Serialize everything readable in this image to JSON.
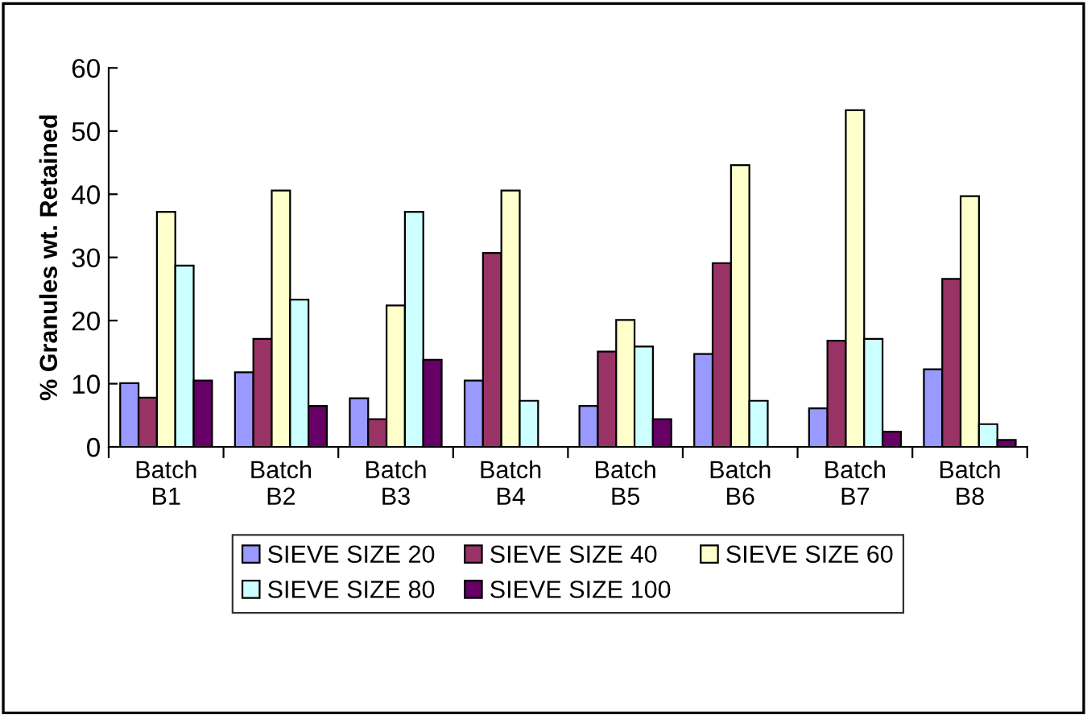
{
  "chart_data": {
    "type": "bar",
    "ylabel": "% Granules wt. Retained",
    "categories": [
      "Batch\nB1",
      "Batch\nB2",
      "Batch\nB3",
      "Batch\nB4",
      "Batch\nB5",
      "Batch\nB6",
      "Batch\nB7",
      "Batch\nB8"
    ],
    "series": [
      {
        "name": "SIEVE SIZE 20",
        "color": "#9999ff",
        "values": [
          10.1,
          11.8,
          7.7,
          10.5,
          6.5,
          14.7,
          6.1,
          12.3
        ]
      },
      {
        "name": "SIEVE SIZE 40",
        "color": "#993366",
        "values": [
          7.8,
          17.1,
          4.4,
          30.7,
          15.1,
          29.1,
          16.8,
          26.6
        ]
      },
      {
        "name": "SIEVE SIZE 60",
        "color": "#ffffcc",
        "values": [
          37.2,
          40.6,
          22.4,
          40.6,
          20.1,
          44.6,
          53.3,
          39.7
        ]
      },
      {
        "name": "SIEVE SIZE 80",
        "color": "#ccffff",
        "values": [
          28.7,
          23.3,
          37.2,
          7.3,
          15.9,
          7.3,
          17.1,
          3.6
        ]
      },
      {
        "name": "SIEVE SIZE 100",
        "color": "#660066",
        "values": [
          10.5,
          6.5,
          13.8,
          null,
          4.4,
          null,
          2.4,
          1.1
        ]
      }
    ],
    "ylim": [
      0,
      60
    ],
    "yticks": [
      0,
      10,
      20,
      30,
      40,
      50,
      60
    ],
    "grid": false,
    "legend": "bottom"
  }
}
